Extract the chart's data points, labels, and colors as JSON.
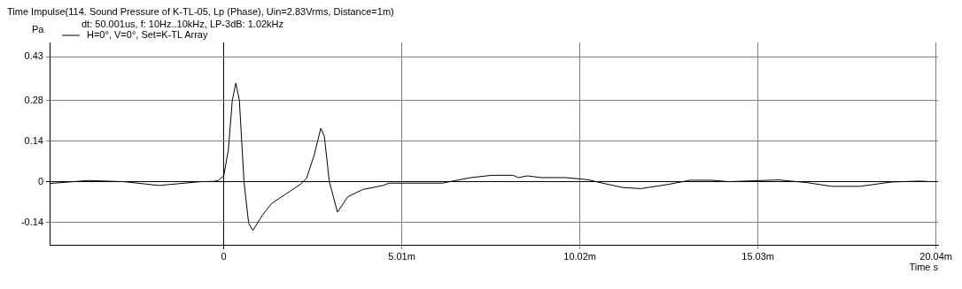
{
  "chart_data": {
    "type": "line",
    "title": "Time Impulse(114. Sound Pressure of K-TL-05, Lp (Phase), Uin=2.83Vrms, Distance=1m)",
    "subtitle": "dt: 50.001us, f: 10Hz..10kHz, LP-3dB: 1.02kHz",
    "xlabel": "Time s",
    "ylabel": "Pa",
    "xlim": [
      -4.9,
      20.1
    ],
    "xticks": [
      0,
      {
        "value": 5.01,
        "label": "5.01m"
      },
      {
        "value": 10.02,
        "label": "10.02m"
      },
      {
        "value": 15.03,
        "label": "15.03m"
      },
      {
        "value": 20.04,
        "label": "20.04m"
      }
    ],
    "ylim": [
      -0.22,
      0.48
    ],
    "yticks": [
      -0.14,
      0,
      0.14,
      0.28,
      0.43
    ],
    "grid": true,
    "legend": "top left",
    "marker": "none",
    "line_style": "solid",
    "series": [
      {
        "name": "H=0°, V=0°, Set=K-TL Array",
        "color": "#000000",
        "x": [
          -4.88,
          -3.81,
          -2.81,
          -1.82,
          -0.65,
          -0.28,
          -0.16,
          0,
          0.13,
          0.24,
          0.34,
          0.44,
          0.57,
          0.7,
          0.82,
          1.09,
          1.34,
          1.75,
          2.17,
          2.33,
          2.54,
          2.73,
          2.83,
          2.97,
          3.2,
          3.49,
          3.91,
          4.48,
          4.65,
          6.15,
          6.95,
          7.54,
          8.14,
          8.29,
          8.54,
          8.94,
          9.63,
          10.23,
          10.73,
          11.23,
          11.73,
          12.52,
          13.12,
          13.72,
          14.21,
          15.61,
          16.4,
          17.1,
          17.9,
          18.8,
          19.59,
          19.79
        ],
        "values": [
          -0.006,
          0.004,
          0,
          -0.013,
          0,
          0.001,
          0.004,
          0.02,
          0.11,
          0.28,
          0.34,
          0.28,
          0,
          -0.143,
          -0.168,
          -0.115,
          -0.076,
          -0.042,
          -0.008,
          0.012,
          0.09,
          0.184,
          0.157,
          0,
          -0.105,
          -0.052,
          -0.027,
          -0.013,
          -0.005,
          -0.005,
          0.014,
          0.022,
          0.022,
          0.014,
          0.02,
          0.014,
          0.014,
          0.007,
          -0.007,
          -0.02,
          -0.024,
          -0.009,
          0.005,
          0.005,
          0,
          0.006,
          -0.003,
          -0.016,
          -0.016,
          -0.001,
          0.002,
          0.001
        ]
      }
    ]
  }
}
